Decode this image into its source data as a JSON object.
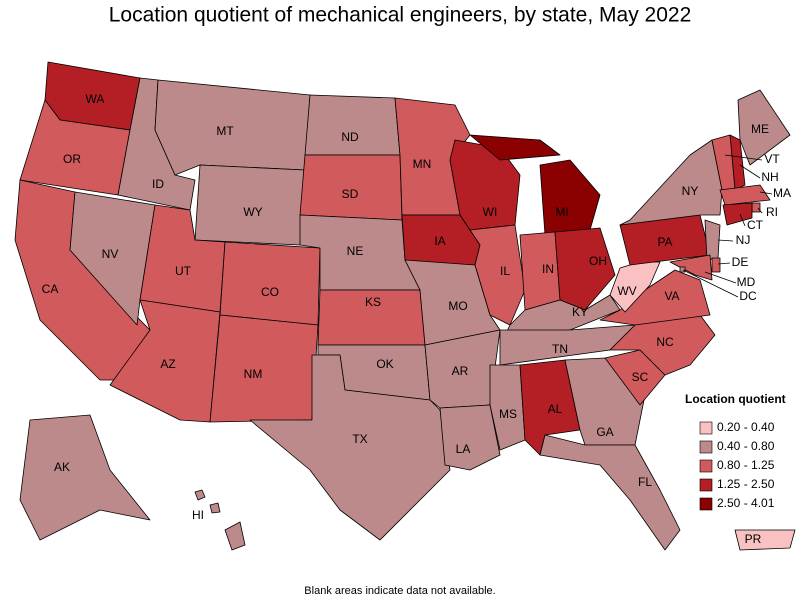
{
  "title": "Location quotient of mechanical engineers, by state, May 2022",
  "footnote": "Blank areas indicate data not available.",
  "legend": {
    "title": "Location quotient",
    "items": [
      {
        "label": "0.20 - 0.40",
        "color": "#f9c1c2"
      },
      {
        "label": "0.40 - 0.80",
        "color": "#bc8a8a"
      },
      {
        "label": "0.80 - 1.25",
        "color": "#d15a5c"
      },
      {
        "label": "1.25 - 2.50",
        "color": "#b31f24"
      },
      {
        "label": "2.50 - 4.01",
        "color": "#8b0000"
      }
    ]
  },
  "states": [
    {
      "abbr": "WA",
      "class": 3
    },
    {
      "abbr": "OR",
      "class": 2
    },
    {
      "abbr": "CA",
      "class": 2
    },
    {
      "abbr": "NV",
      "class": 1
    },
    {
      "abbr": "ID",
      "class": 1
    },
    {
      "abbr": "MT",
      "class": 1
    },
    {
      "abbr": "WY",
      "class": 1
    },
    {
      "abbr": "UT",
      "class": 2
    },
    {
      "abbr": "AZ",
      "class": 2
    },
    {
      "abbr": "CO",
      "class": 2
    },
    {
      "abbr": "NM",
      "class": 2
    },
    {
      "abbr": "ND",
      "class": 1
    },
    {
      "abbr": "SD",
      "class": 2
    },
    {
      "abbr": "NE",
      "class": 1
    },
    {
      "abbr": "KS",
      "class": 2
    },
    {
      "abbr": "OK",
      "class": 1
    },
    {
      "abbr": "TX",
      "class": 1
    },
    {
      "abbr": "MN",
      "class": 2
    },
    {
      "abbr": "IA",
      "class": 3
    },
    {
      "abbr": "MO",
      "class": 1
    },
    {
      "abbr": "AR",
      "class": 1
    },
    {
      "abbr": "LA",
      "class": 1
    },
    {
      "abbr": "WI",
      "class": 3
    },
    {
      "abbr": "IL",
      "class": 2
    },
    {
      "abbr": "MI",
      "class": 4
    },
    {
      "abbr": "IN",
      "class": 2
    },
    {
      "abbr": "OH",
      "class": 3
    },
    {
      "abbr": "KY",
      "class": 1
    },
    {
      "abbr": "TN",
      "class": 1
    },
    {
      "abbr": "MS",
      "class": 1
    },
    {
      "abbr": "AL",
      "class": 3
    },
    {
      "abbr": "GA",
      "class": 1
    },
    {
      "abbr": "FL",
      "class": 1
    },
    {
      "abbr": "SC",
      "class": 2
    },
    {
      "abbr": "NC",
      "class": 2
    },
    {
      "abbr": "VA",
      "class": 2
    },
    {
      "abbr": "WV",
      "class": 0
    },
    {
      "abbr": "PA",
      "class": 3
    },
    {
      "abbr": "NY",
      "class": 1
    },
    {
      "abbr": "NJ",
      "class": 1
    },
    {
      "abbr": "ME",
      "class": 1
    },
    {
      "abbr": "NH",
      "class": 3
    },
    {
      "abbr": "VT",
      "class": 2
    },
    {
      "abbr": "MA",
      "class": 2
    },
    {
      "abbr": "RI",
      "class": 2
    },
    {
      "abbr": "CT",
      "class": 3
    },
    {
      "abbr": "DE",
      "class": 2
    },
    {
      "abbr": "MD",
      "class": 2
    },
    {
      "abbr": "DC",
      "class": 1
    },
    {
      "abbr": "AK",
      "class": 1
    },
    {
      "abbr": "HI",
      "class": 1
    },
    {
      "abbr": "PR",
      "class": 0
    }
  ]
}
